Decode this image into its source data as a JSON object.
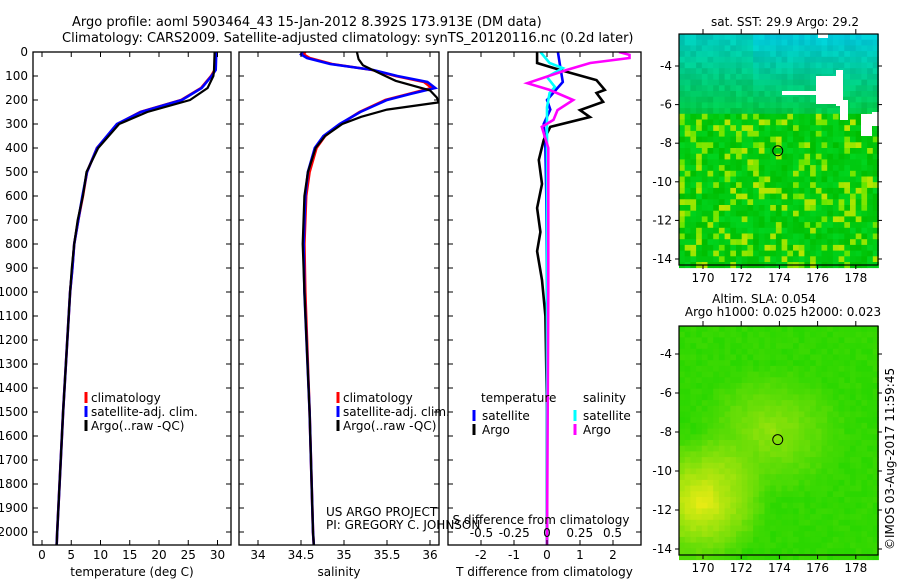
{
  "title": {
    "line1": "Argo profile: aoml 5903464_43 15-Jan-2012 8.392S 173.913E (DM data)",
    "line2": "Climatology: CARS2009. Satellite-adjusted climatology: synTS_20120116.nc (0.2d later)"
  },
  "credits": {
    "project": "US ARGO PROJECT",
    "pi": "PI: GREGORY C. JOHNSON",
    "imos": "©IMOS 03-Aug-2017 11:59:45"
  },
  "colors": {
    "climatology": "#ff0000",
    "satellite": "#0000ff",
    "argo": "#000000",
    "sat_salinity": "#00ffff",
    "argo_salinity": "#ff00ff"
  },
  "chart_data": [
    {
      "type": "line",
      "name": "temperature-profile",
      "xlabel": "temperature (deg C)",
      "ylabel": "",
      "xlim": [
        -1.8,
        32
      ],
      "ylim": [
        2060,
        0
      ],
      "xticks": [
        0,
        5,
        10,
        15,
        20,
        25,
        30
      ],
      "yticks": [
        0,
        100,
        200,
        300,
        400,
        500,
        600,
        700,
        800,
        900,
        1000,
        1100,
        1200,
        1300,
        1400,
        1500,
        1600,
        1700,
        1800,
        1900,
        2000
      ],
      "legend": [
        "climatology",
        "satellite-adj. clim.",
        "Argo(..raw -QC)"
      ],
      "legend_position": "lower-middle",
      "series": [
        {
          "name": "climatology",
          "color": "#ff0000",
          "depth": [
            0,
            75,
            100,
            150,
            200,
            250,
            300,
            400,
            500,
            600,
            700,
            800,
            900,
            1000,
            1500,
            2000,
            2060
          ],
          "values": [
            29.6,
            29.5,
            28.9,
            27.2,
            23.8,
            16.8,
            12.9,
            9.4,
            7.7,
            7.0,
            6.2,
            5.5,
            5.2,
            4.8,
            3.6,
            2.6,
            2.5
          ]
        },
        {
          "name": "satellite-adj. clim.",
          "color": "#0000ff",
          "depth": [
            0,
            75,
            100,
            150,
            200,
            250,
            300,
            400,
            500,
            600,
            700,
            800,
            900,
            1000,
            1500,
            2000,
            2060
          ],
          "values": [
            29.8,
            29.7,
            29.0,
            27.3,
            23.9,
            16.9,
            12.8,
            9.4,
            7.7,
            6.9,
            6.2,
            5.5,
            5.2,
            4.8,
            3.6,
            2.6,
            2.5
          ]
        },
        {
          "name": "Argo(..raw -QC)",
          "color": "#000000",
          "depth": [
            0,
            75,
            100,
            150,
            200,
            250,
            300,
            400,
            500,
            600,
            700,
            800,
            900,
            1000,
            1500,
            2000,
            2060
          ],
          "values": [
            29.5,
            29.4,
            29.3,
            28.3,
            25.3,
            18.0,
            13.2,
            9.6,
            7.6,
            7.0,
            6.1,
            5.5,
            5.1,
            4.8,
            3.6,
            2.6,
            2.5
          ]
        }
      ]
    },
    {
      "type": "line",
      "name": "salinity-profile",
      "xlabel": "salinity",
      "xlim": [
        33.72,
        36.05
      ],
      "ylim": [
        2060,
        0
      ],
      "xticks": [
        34,
        34.5,
        35,
        35.5,
        36
      ],
      "legend": [
        "climatology",
        "satellite-adj. clim.",
        "Argo(..raw -QC)"
      ],
      "legend_position": "lower-middle",
      "series": [
        {
          "name": "climatology",
          "color": "#ff0000",
          "depth": [
            0,
            10,
            25,
            50,
            75,
            100,
            125,
            150,
            175,
            200,
            250,
            300,
            350,
            400,
            500,
            600,
            800,
            1000,
            1500,
            2000,
            2060
          ],
          "values": [
            34.55,
            34.53,
            34.6,
            34.86,
            35.33,
            35.6,
            35.93,
            36.02,
            35.75,
            35.48,
            35.18,
            34.96,
            34.78,
            34.68,
            34.6,
            34.56,
            34.54,
            34.55,
            34.6,
            34.64,
            34.65
          ]
        },
        {
          "name": "satellite-adj. clim.",
          "color": "#0000ff",
          "depth": [
            0,
            10,
            25,
            50,
            75,
            100,
            125,
            150,
            175,
            200,
            250,
            300,
            350,
            400,
            500,
            600,
            800,
            1000,
            1500,
            2000,
            2060
          ],
          "values": [
            34.52,
            34.5,
            34.57,
            34.84,
            35.34,
            35.62,
            35.97,
            36.06,
            35.77,
            35.5,
            35.19,
            34.95,
            34.76,
            34.66,
            34.58,
            34.55,
            34.53,
            34.54,
            34.6,
            34.64,
            34.65
          ]
        },
        {
          "name": "Argo(..raw -QC)",
          "color": "#000000",
          "depth": [
            0,
            30,
            55,
            95,
            120,
            160,
            190,
            210,
            240,
            270,
            300,
            350,
            400,
            500,
            600,
            800,
            1000,
            1500,
            2000,
            2060
          ],
          "values": [
            35.15,
            35.17,
            35.22,
            35.45,
            35.6,
            36.0,
            36.08,
            36.1,
            35.5,
            35.2,
            34.98,
            34.78,
            34.67,
            34.58,
            34.54,
            34.52,
            34.54,
            34.6,
            34.64,
            34.65
          ]
        }
      ]
    },
    {
      "type": "line",
      "name": "difference-profile",
      "xlabel": "T difference from climatology",
      "xlabel2": "S difference from climatology",
      "xlim": [
        -3,
        2.85
      ],
      "x2lim": [
        -0.76,
        0.71
      ],
      "ylim": [
        2060,
        0
      ],
      "xticks": [
        -2,
        -1,
        0,
        1,
        2
      ],
      "x2ticks": [
        -0.5,
        -0.25,
        0,
        0.25,
        0.5
      ],
      "legend_headers": [
        "temperature",
        "salinity"
      ],
      "legend": [
        "satellite",
        "Argo",
        "satellite",
        "Argo"
      ],
      "series": [
        {
          "name": "temperature satellite",
          "axis": "T",
          "color": "#0000ff",
          "depth": [
            0,
            60,
            125,
            200,
            240,
            300,
            400,
            600,
            1000,
            2060
          ],
          "values": [
            0.33,
            0.4,
            0.48,
            0.0,
            0.1,
            -0.1,
            -0.05,
            -0.02,
            0,
            0
          ]
        },
        {
          "name": "temperature Argo",
          "axis": "T",
          "color": "#000000",
          "depth": [
            0,
            46,
            75,
            117,
            158,
            171,
            208,
            242,
            271,
            312,
            367,
            450,
            550,
            650,
            750,
            830,
            950,
            1100,
            1500,
            2060
          ],
          "values": [
            -0.3,
            -0.3,
            0.4,
            1.5,
            1.75,
            1.5,
            1.7,
            1.0,
            1.3,
            0.1,
            -0.1,
            -0.25,
            -0.15,
            -0.3,
            -0.2,
            -0.3,
            -0.15,
            -0.05,
            0,
            0
          ]
        },
        {
          "name": "salinity satellite",
          "axis": "S",
          "color": "#00ffff",
          "depth": [
            0,
            46,
            67,
            104,
            146,
            171,
            230,
            400,
            1000,
            2060
          ],
          "values": [
            -0.05,
            0.02,
            0.12,
            0.0,
            0.06,
            0.02,
            0.0,
            0.0,
            0.0,
            0.0
          ]
        },
        {
          "name": "salinity Argo",
          "axis": "S",
          "color": "#ff00ff",
          "depth": [
            0,
            12,
            25,
            46,
            75,
            130,
            158,
            200,
            242,
            283,
            312,
            400,
            1000,
            2060
          ],
          "values": [
            0.55,
            0.63,
            0.63,
            0.33,
            0.15,
            -0.15,
            0.02,
            0.2,
            0.08,
            0.05,
            -0.04,
            0.01,
            0.01,
            0.0
          ]
        }
      ]
    },
    {
      "type": "heatmap",
      "name": "sst-map",
      "title": "sat. SST: 29.9 Argo: 29.2",
      "xlim": [
        168.8,
        179.2
      ],
      "ylim": [
        -14.3,
        -2.35
      ],
      "xticks": [
        170,
        172,
        174,
        176,
        178
      ],
      "yticks": [
        -4,
        -6,
        -8,
        -10,
        -12,
        -14
      ],
      "marker": {
        "lon": 173.913,
        "lat": -8.392
      }
    },
    {
      "type": "heatmap",
      "name": "sla-map",
      "title": "Altim. SLA: 0.054",
      "subtitle": "Argo h1000: 0.025 h2000: 0.023",
      "xlim": [
        168.8,
        179.2
      ],
      "ylim": [
        -14.3,
        -2.55
      ],
      "xticks": [
        170,
        172,
        174,
        176,
        178
      ],
      "yticks": [
        -4,
        -6,
        -8,
        -10,
        -12,
        -14
      ],
      "marker": {
        "lon": 173.913,
        "lat": -8.392
      }
    }
  ]
}
